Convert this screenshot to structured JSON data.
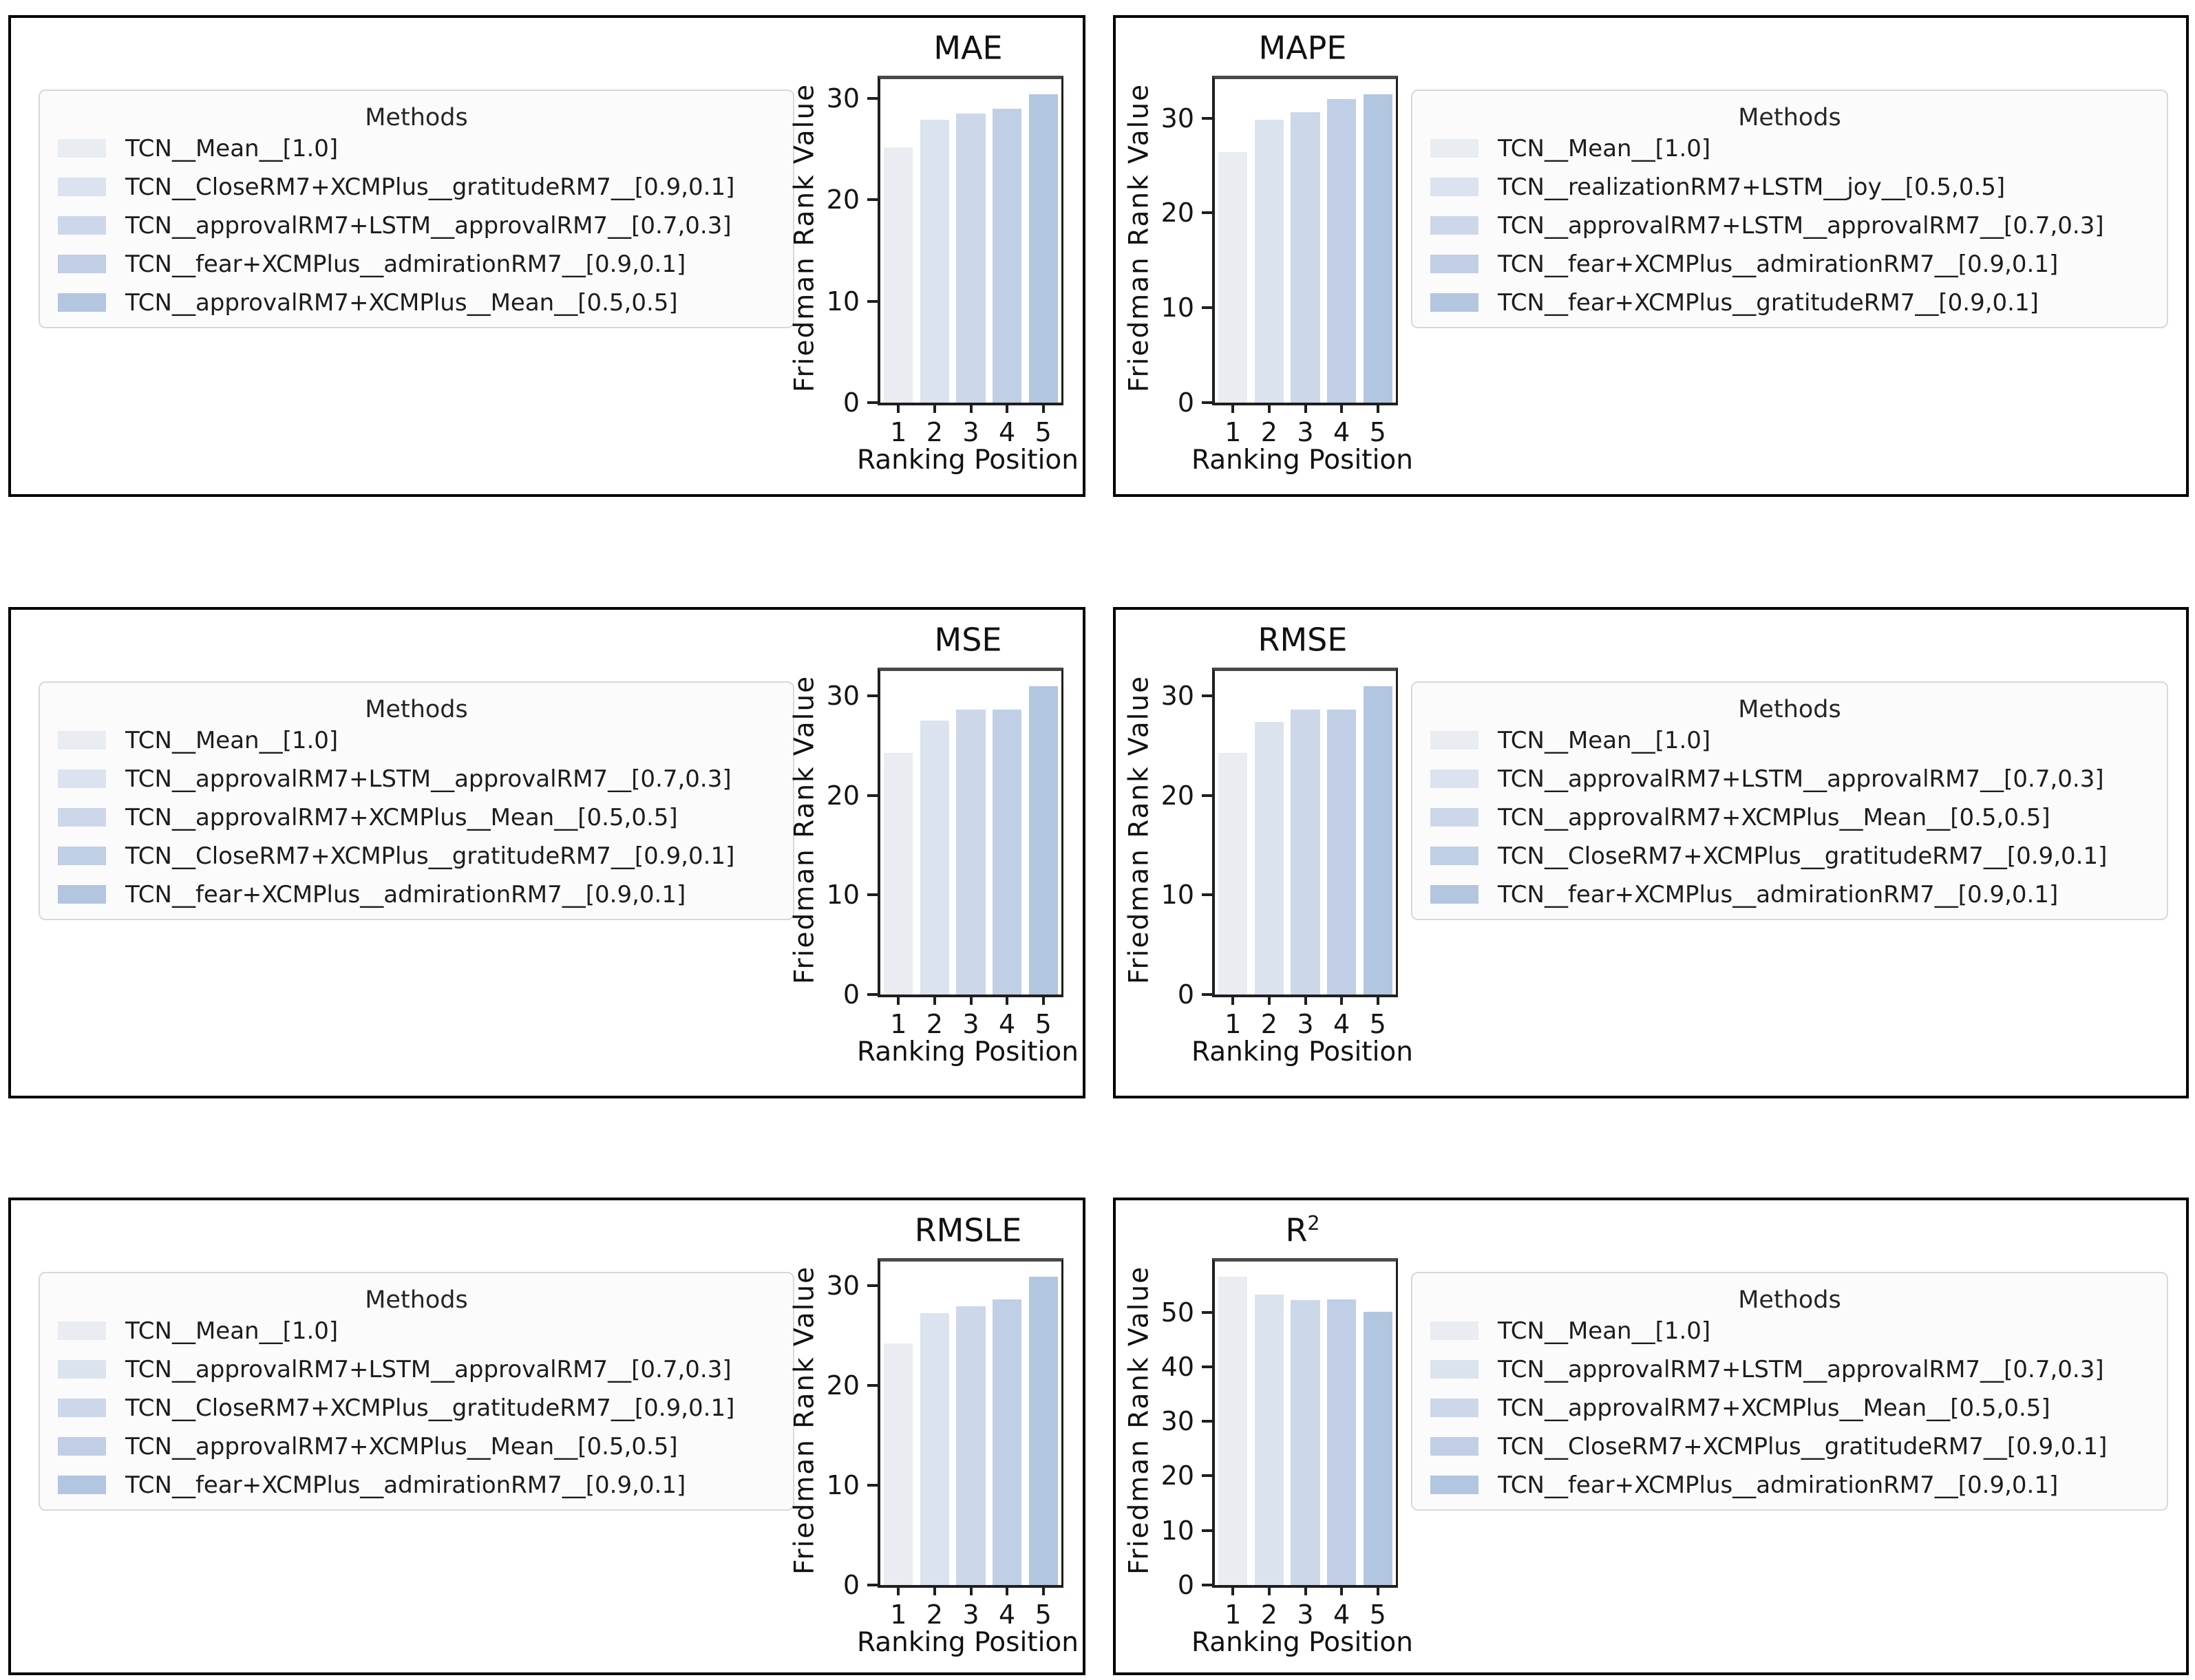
{
  "figure": {
    "background": "#ffffff",
    "panel_border_color": "#000000",
    "bar_palette": [
      "#e9ecf1",
      "#dbe3ee",
      "#ccd8ea",
      "#c0cfe6",
      "#b2c6e0"
    ],
    "legend_border_color": "#d8d8d8",
    "axis_color": "#1f1f1f"
  },
  "chart_data": [
    {
      "type": "bar",
      "title": "MAE",
      "title_sup": "",
      "categories": [
        "1",
        "2",
        "3",
        "4",
        "5"
      ],
      "values": [
        25.2,
        27.9,
        28.5,
        29.0,
        30.4
      ],
      "yticks": [
        0,
        10,
        20,
        30
      ],
      "ylim": [
        0,
        31.9
      ],
      "xlabel": "Ranking Position",
      "ylabel": "Friedman Rank Value",
      "legend_title": "Methods",
      "legend_position": "left",
      "grid": false,
      "legend_entries": [
        "TCN__Mean__[1.0]",
        "TCN__CloseRM7+XCMPlus__gratitudeRM7__[0.9,0.1]",
        "TCN__approvalRM7+LSTM__approvalRM7__[0.7,0.3]",
        "TCN__fear+XCMPlus__admirationRM7__[0.9,0.1]",
        "TCN__approvalRM7+XCMPlus__Mean__[0.5,0.5]"
      ]
    },
    {
      "type": "bar",
      "title": "MAPE",
      "title_sup": "",
      "categories": [
        "1",
        "2",
        "3",
        "4",
        "5"
      ],
      "values": [
        26.4,
        29.8,
        30.6,
        32.0,
        32.5
      ],
      "yticks": [
        0,
        10,
        20,
        30
      ],
      "ylim": [
        0,
        34.1
      ],
      "xlabel": "Ranking Position",
      "ylabel": "Friedman Rank Value",
      "legend_title": "Methods",
      "legend_position": "right",
      "grid": false,
      "legend_entries": [
        "TCN__Mean__[1.0]",
        "TCN__realizationRM7+LSTM__joy__[0.5,0.5]",
        "TCN__approvalRM7+LSTM__approvalRM7__[0.7,0.3]",
        "TCN__fear+XCMPlus__admirationRM7__[0.9,0.1]",
        "TCN__fear+XCMPlus__gratitudeRM7__[0.9,0.1]"
      ]
    },
    {
      "type": "bar",
      "title": "MSE",
      "title_sup": "",
      "categories": [
        "1",
        "2",
        "3",
        "4",
        "5"
      ],
      "values": [
        24.3,
        27.5,
        28.6,
        28.6,
        31.0
      ],
      "yticks": [
        0,
        10,
        20,
        30
      ],
      "ylim": [
        0,
        32.5
      ],
      "xlabel": "Ranking Position",
      "ylabel": "Friedman Rank Value",
      "legend_title": "Methods",
      "legend_position": "left",
      "grid": false,
      "legend_entries": [
        "TCN__Mean__[1.0]",
        "TCN__approvalRM7+LSTM__approvalRM7__[0.7,0.3]",
        "TCN__approvalRM7+XCMPlus__Mean__[0.5,0.5]",
        "TCN__CloseRM7+XCMPlus__gratitudeRM7__[0.9,0.1]",
        "TCN__fear+XCMPlus__admirationRM7__[0.9,0.1]"
      ]
    },
    {
      "type": "bar",
      "title": "RMSE",
      "title_sup": "",
      "categories": [
        "1",
        "2",
        "3",
        "4",
        "5"
      ],
      "values": [
        24.3,
        27.4,
        28.6,
        28.6,
        31.0
      ],
      "yticks": [
        0,
        10,
        20,
        30
      ],
      "ylim": [
        0,
        32.5
      ],
      "xlabel": "Ranking Position",
      "ylabel": "Friedman Rank Value",
      "legend_title": "Methods",
      "legend_position": "right",
      "grid": false,
      "legend_entries": [
        "TCN__Mean__[1.0]",
        "TCN__approvalRM7+LSTM__approvalRM7__[0.7,0.3]",
        "TCN__approvalRM7+XCMPlus__Mean__[0.5,0.5]",
        "TCN__CloseRM7+XCMPlus__gratitudeRM7__[0.9,0.1]",
        "TCN__fear+XCMPlus__admirationRM7__[0.9,0.1]"
      ]
    },
    {
      "type": "bar",
      "title": "RMSLE",
      "title_sup": "",
      "categories": [
        "1",
        "2",
        "3",
        "4",
        "5"
      ],
      "values": [
        24.2,
        27.2,
        27.9,
        28.6,
        30.9
      ],
      "yticks": [
        0,
        10,
        20,
        30
      ],
      "ylim": [
        0,
        32.4
      ],
      "xlabel": "Ranking Position",
      "ylabel": "Friedman Rank Value",
      "legend_title": "Methods",
      "legend_position": "left",
      "grid": false,
      "legend_entries": [
        "TCN__Mean__[1.0]",
        "TCN__approvalRM7+LSTM__approvalRM7__[0.7,0.3]",
        "TCN__CloseRM7+XCMPlus__gratitudeRM7__[0.9,0.1]",
        "TCN__approvalRM7+XCMPlus__Mean__[0.5,0.5]",
        "TCN__fear+XCMPlus__admirationRM7__[0.9,0.1]"
      ]
    },
    {
      "type": "bar",
      "title": "R",
      "title_sup": "2",
      "categories": [
        "1",
        "2",
        "3",
        "4",
        "5"
      ],
      "values": [
        56.5,
        53.3,
        52.2,
        52.3,
        50.1
      ],
      "yticks": [
        0,
        10,
        20,
        30,
        40,
        50
      ],
      "ylim": [
        0,
        59.3
      ],
      "xlabel": "Ranking Position",
      "ylabel": "Friedman Rank Value",
      "legend_title": "Methods",
      "legend_position": "right",
      "grid": false,
      "legend_entries": [
        "TCN__Mean__[1.0]",
        "TCN__approvalRM7+LSTM__approvalRM7__[0.7,0.3]",
        "TCN__approvalRM7+XCMPlus__Mean__[0.5,0.5]",
        "TCN__CloseRM7+XCMPlus__gratitudeRM7__[0.9,0.1]",
        "TCN__fear+XCMPlus__admirationRM7__[0.9,0.1]"
      ]
    }
  ]
}
